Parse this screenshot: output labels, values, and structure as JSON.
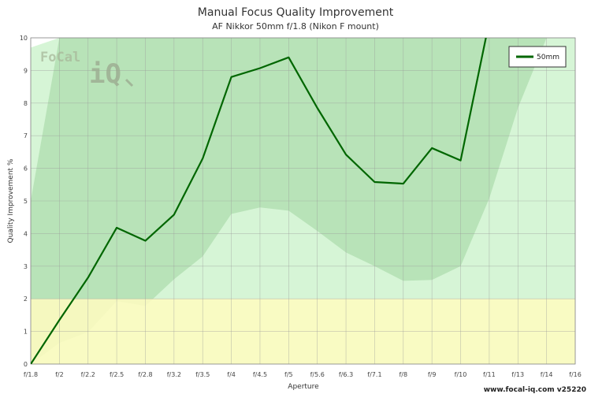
{
  "chart_data": {
    "type": "line",
    "title": "Manual Focus Quality Improvement",
    "subtitle": "AF Nikkor 50mm f/1.8 (Nikon F mount)",
    "xlabel": "Aperture",
    "ylabel": "Quality Improvement %",
    "categories": [
      "f/1.8",
      "f/2",
      "f/2.2",
      "f/2.5",
      "f/2.8",
      "f/3.2",
      "f/3.5",
      "f/4",
      "f/4.5",
      "f/5",
      "f/5.6",
      "f/6.3",
      "f/7.1",
      "f/8",
      "f/9",
      "f/10",
      "f/11",
      "f/13",
      "f/14",
      "f/16"
    ],
    "ylim": [
      0,
      10
    ],
    "yticks": [
      "0",
      "1",
      "2",
      "3",
      "4",
      "5",
      "6",
      "7",
      "8",
      "9",
      "10"
    ],
    "grid": true,
    "legend_position": "top-right",
    "series": [
      {
        "name": "50mm",
        "color": "#006600",
        "values": [
          0,
          1.35,
          2.65,
          4.18,
          3.78,
          4.58,
          6.3,
          8.8,
          9.07,
          9.4,
          7.85,
          6.42,
          5.58,
          5.53,
          6.62,
          6.24,
          10.5,
          null,
          null,
          null
        ]
      }
    ],
    "bands": {
      "threshold": 2,
      "threshold_color": "#fffcbf",
      "outer_upper": [
        9.7,
        10,
        10,
        10,
        10,
        10,
        10,
        10,
        10,
        10,
        10,
        10,
        10,
        10,
        10,
        10,
        10,
        10,
        10,
        10
      ],
      "inner_upper": [
        5.0,
        10,
        10,
        10,
        10,
        10,
        10,
        10,
        10,
        10,
        10,
        10,
        10,
        10,
        10,
        10,
        10,
        10,
        10,
        10
      ],
      "inner_lower": [
        0,
        0.65,
        0.98,
        1.93,
        1.78,
        2.6,
        3.3,
        4.6,
        4.8,
        4.7,
        4.08,
        3.42,
        3.0,
        2.55,
        2.58,
        3.0,
        5.08,
        7.85,
        10,
        10
      ],
      "outer_color": "#d6f5d6",
      "inner_color": "#b8e3b8"
    },
    "footer": "www.focal-iq.com  v25220",
    "logo": {
      "line1": "FoCal",
      "line2": "iQ"
    }
  }
}
